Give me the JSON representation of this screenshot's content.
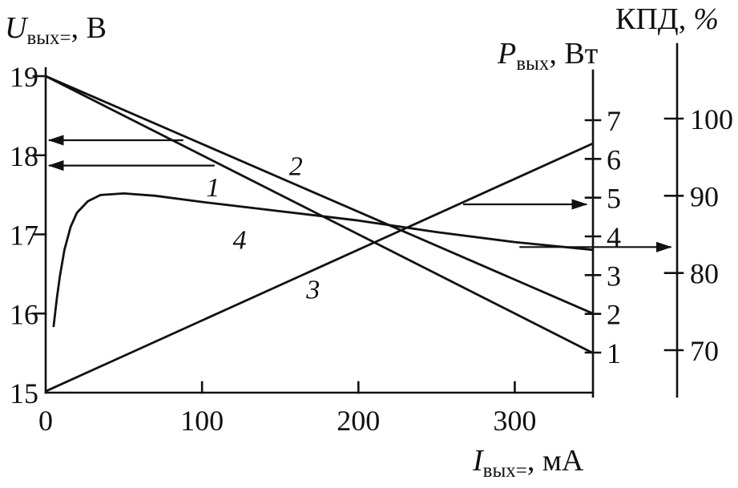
{
  "chart_data": {
    "type": "line",
    "x_axis": {
      "label_symbol": "I",
      "label_sub": "вых=",
      "label_rest": ", мА",
      "ticks": [
        0,
        100,
        200,
        300
      ],
      "range": [
        0,
        350
      ],
      "units": "мА"
    },
    "y_axis_left": {
      "label_symbol": "U",
      "label_sub": "вых=",
      "label_rest": ", В",
      "ticks": [
        15,
        16,
        17,
        18,
        19
      ],
      "range": [
        15,
        19
      ],
      "units": "В"
    },
    "y_axis_power": {
      "label_symbol": "P",
      "label_sub": "вых",
      "label_rest": ", Вт",
      "ticks": [
        1,
        2,
        3,
        4,
        5,
        6,
        7
      ],
      "range": [
        0,
        7.3
      ],
      "units": "Вт"
    },
    "y_axis_efficiency": {
      "label_prefix": "КПД,",
      "label_pct": "%",
      "ticks": [
        70,
        80,
        90,
        100
      ],
      "range": [
        68,
        103
      ],
      "units": "%"
    },
    "series": [
      {
        "id": "1",
        "label": "1",
        "axis": "U",
        "x": [
          0,
          350
        ],
        "y": [
          19,
          15.5
        ]
      },
      {
        "id": "2",
        "label": "2",
        "axis": "U",
        "x": [
          0,
          350
        ],
        "y": [
          19,
          16.0
        ]
      },
      {
        "id": "3",
        "label": "3",
        "axis": "P",
        "x": [
          0,
          350
        ],
        "y": [
          0,
          6.4
        ]
      },
      {
        "id": "4",
        "label": "4",
        "axis": "K",
        "x": [
          5,
          7,
          9,
          12,
          16,
          20,
          27,
          35,
          50,
          70,
          100,
          150,
          200,
          250,
          300,
          350
        ],
        "y": [
          73,
          76.5,
          79.5,
          83,
          86,
          87.8,
          89.3,
          90.1,
          90.3,
          90,
          89.2,
          88,
          86.8,
          85.3,
          84,
          83
        ]
      }
    ],
    "curve_labels": [
      {
        "text": "2",
        "x_ma": 160,
        "y_u": 17.75
      },
      {
        "text": "1",
        "x_ma": 107,
        "y_u": 17.48
      },
      {
        "text": "4",
        "x_ma": 124,
        "y_u": 16.82
      },
      {
        "text": "3",
        "x_ma": 171,
        "y_u": 16.19
      }
    ],
    "arrows": [
      {
        "x1_ma": 88,
        "x2_ma": 2,
        "y_u": 18.19,
        "points_to": "left-voltage-axis"
      },
      {
        "x1_ma": 108,
        "x2_ma": 2,
        "y_u": 17.87,
        "points_to": "left-voltage-axis"
      },
      {
        "x1_ma": 267,
        "x2_ma": 346,
        "y_u": 17.38,
        "points_to": "power-axis"
      },
      {
        "x1_ma": 303,
        "x2_ma": 400,
        "y_u": 16.84,
        "points_to": "efficiency-axis"
      }
    ]
  }
}
